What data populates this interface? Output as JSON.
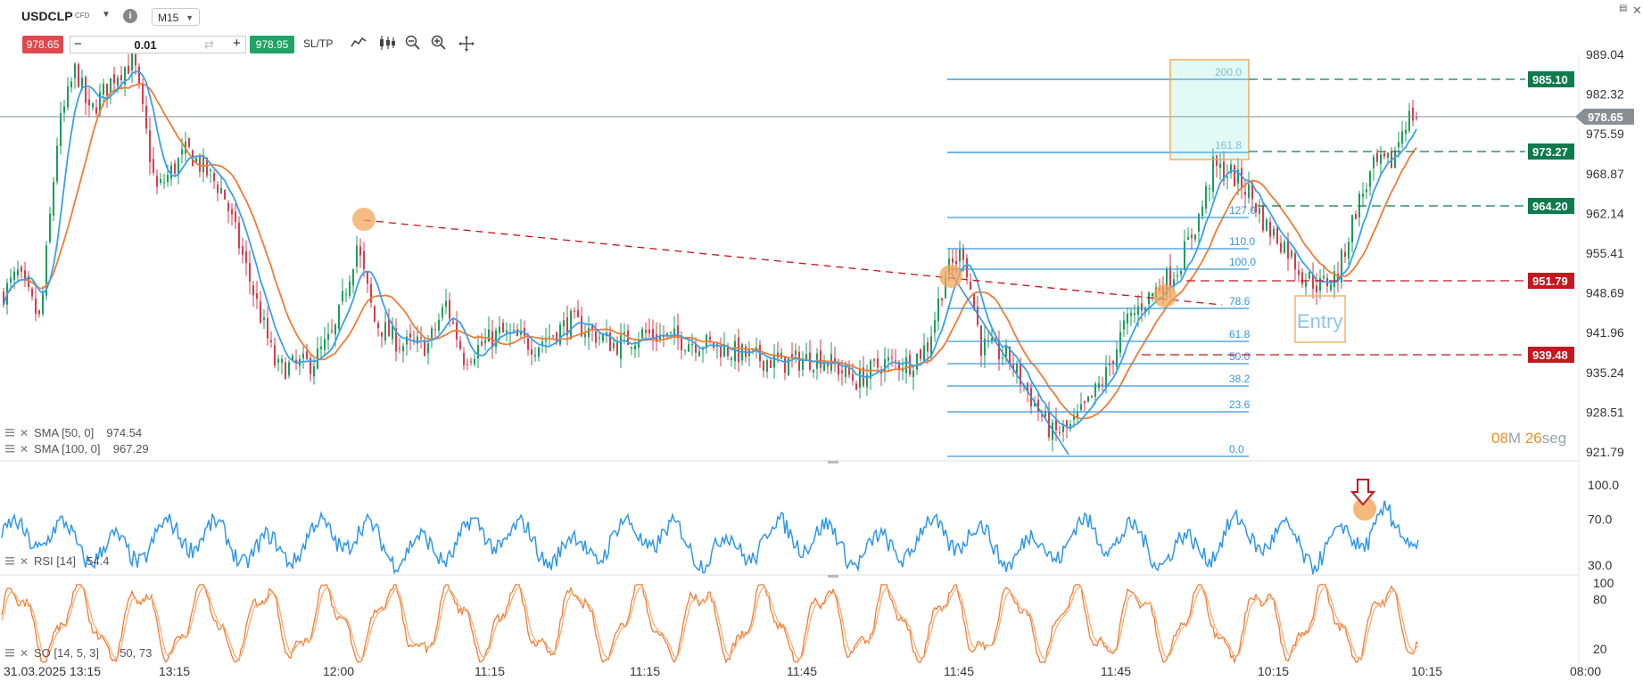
{
  "header": {
    "symbol": "USDCLP",
    "symbol_type": "CFD",
    "timeframe": "M15",
    "sell_price": "978.65",
    "buy_price": "978.95",
    "volume": "0.01",
    "minus_label": "−",
    "plus_label": "+",
    "sltp_label": "SL/TP"
  },
  "icons": [
    "info-icon",
    "line-chart-icon",
    "candles-icon",
    "zoom-out-icon",
    "zoom-in-icon",
    "move-icon",
    "window-icon",
    "close-icon",
    "refresh-icon",
    "chevron-down-icon"
  ],
  "colors": {
    "sma50": "#3aa0ea",
    "sma100": "#f07c36",
    "bull": "#1a9e5c",
    "bear": "#d93a4e",
    "fib": "#3a96d8",
    "green_level": "#0f7a4d",
    "red_level": "#c4171f",
    "current_price": "#8a8f95",
    "orange_marker": "#f2a65a",
    "entry_box": "#f2b46b"
  },
  "chart_data": {
    "type": "candlestick",
    "price_axis_ticks": [
      "989.04",
      "982.32",
      "975.59",
      "968.87",
      "962.14",
      "955.41",
      "948.69",
      "941.96",
      "935.24",
      "928.51",
      "921.79"
    ],
    "current_price": "978.65",
    "price_labels": [
      {
        "value": "985.10",
        "kind": "green"
      },
      {
        "value": "973.27",
        "kind": "green"
      },
      {
        "value": "964.20",
        "kind": "green"
      },
      {
        "value": "951.79",
        "kind": "red"
      },
      {
        "value": "939.48",
        "kind": "red"
      }
    ],
    "fibonacci_levels": [
      "200.0",
      "161.8",
      "127.0",
      "110.0",
      "100.0",
      "78.6",
      "61.8",
      "50.0",
      "38.2",
      "23.6",
      "0.0"
    ],
    "time_axis_labels": [
      "31.03.2025 13:15",
      "13:15",
      "12:00",
      "11:15",
      "11:15",
      "11:45",
      "11:45",
      "11:45",
      "10:15",
      "10:15",
      "08:00"
    ],
    "indicators": {
      "sma50": {
        "label": "SMA [50, 0]",
        "value": "974.54"
      },
      "sma100": {
        "label": "SMA [100, 0]",
        "value": "967.29"
      },
      "rsi": {
        "label": "RSI [14]",
        "value": "54.4",
        "ticks": [
          "100.0",
          "70.0",
          "30.0"
        ]
      },
      "so": {
        "label": "SO [14, 5, 3]",
        "value": "50, 73",
        "ticks": [
          "100",
          "80",
          "20"
        ]
      }
    },
    "annotations": {
      "entry_label": "Entry"
    },
    "countdown": {
      "minutes": "08",
      "minutes_unit": "M",
      "seconds": "26",
      "seconds_unit": "seg"
    }
  }
}
